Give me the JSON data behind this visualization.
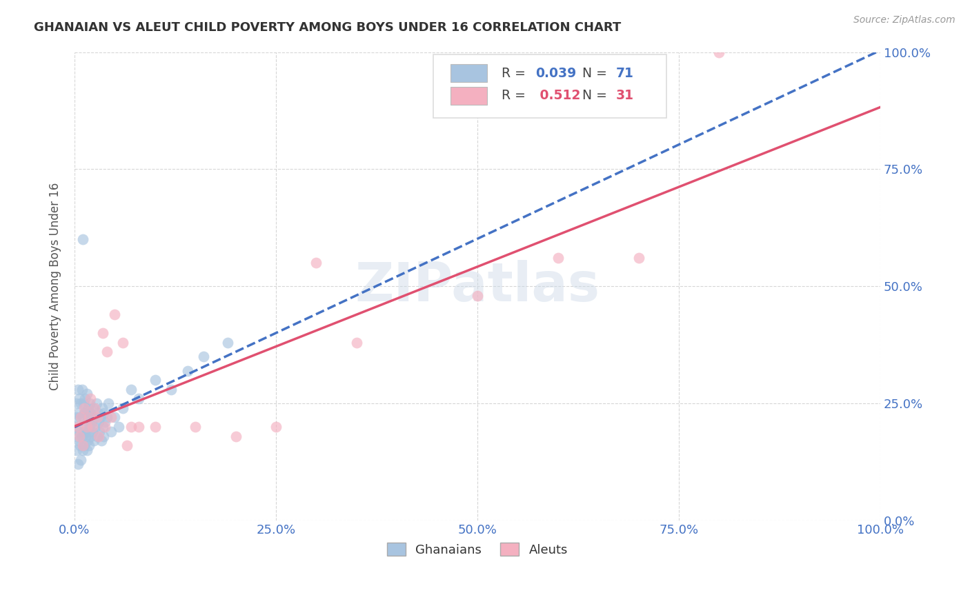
{
  "title": "GHANAIAN VS ALEUT CHILD POVERTY AMONG BOYS UNDER 16 CORRELATION CHART",
  "source": "Source: ZipAtlas.com",
  "ylabel": "Child Poverty Among Boys Under 16",
  "background_color": "#ffffff",
  "title_color": "#333333",
  "axis_label_color": "#555555",
  "tick_label_color": "#4472c4",
  "grid_color": "#cccccc",
  "ghanaian_x": [
    0.001,
    0.002,
    0.002,
    0.003,
    0.003,
    0.004,
    0.004,
    0.005,
    0.005,
    0.006,
    0.006,
    0.007,
    0.007,
    0.008,
    0.008,
    0.009,
    0.009,
    0.01,
    0.01,
    0.011,
    0.011,
    0.012,
    0.012,
    0.013,
    0.013,
    0.014,
    0.014,
    0.015,
    0.015,
    0.016,
    0.016,
    0.017,
    0.017,
    0.018,
    0.018,
    0.019,
    0.019,
    0.02,
    0.02,
    0.021,
    0.022,
    0.023,
    0.024,
    0.025,
    0.026,
    0.027,
    0.028,
    0.029,
    0.03,
    0.031,
    0.032,
    0.033,
    0.034,
    0.035,
    0.036,
    0.037,
    0.038,
    0.04,
    0.042,
    0.045,
    0.05,
    0.055,
    0.06,
    0.07,
    0.08,
    0.1,
    0.12,
    0.14,
    0.16,
    0.19,
    0.01
  ],
  "ghanaian_y": [
    0.2,
    0.22,
    0.18,
    0.25,
    0.15,
    0.28,
    0.12,
    0.23,
    0.17,
    0.26,
    0.19,
    0.22,
    0.16,
    0.25,
    0.13,
    0.28,
    0.18,
    0.22,
    0.15,
    0.25,
    0.19,
    0.23,
    0.16,
    0.26,
    0.2,
    0.18,
    0.23,
    0.15,
    0.27,
    0.21,
    0.17,
    0.24,
    0.19,
    0.22,
    0.16,
    0.25,
    0.2,
    0.18,
    0.23,
    0.21,
    0.19,
    0.24,
    0.17,
    0.22,
    0.2,
    0.25,
    0.18,
    0.23,
    0.21,
    0.19,
    0.22,
    0.17,
    0.24,
    0.2,
    0.18,
    0.23,
    0.21,
    0.22,
    0.25,
    0.19,
    0.22,
    0.2,
    0.24,
    0.28,
    0.26,
    0.3,
    0.28,
    0.32,
    0.35,
    0.38,
    0.6
  ],
  "aleut_x": [
    0.004,
    0.006,
    0.008,
    0.01,
    0.012,
    0.015,
    0.018,
    0.02,
    0.022,
    0.025,
    0.028,
    0.03,
    0.035,
    0.038,
    0.04,
    0.045,
    0.05,
    0.06,
    0.065,
    0.07,
    0.08,
    0.1,
    0.15,
    0.2,
    0.25,
    0.3,
    0.35,
    0.5,
    0.6,
    0.7,
    0.8
  ],
  "aleut_y": [
    0.2,
    0.18,
    0.22,
    0.16,
    0.24,
    0.2,
    0.22,
    0.26,
    0.2,
    0.24,
    0.22,
    0.18,
    0.4,
    0.2,
    0.36,
    0.22,
    0.44,
    0.38,
    0.16,
    0.2,
    0.2,
    0.2,
    0.2,
    0.18,
    0.2,
    0.55,
    0.38,
    0.48,
    0.56,
    0.56,
    1.0
  ],
  "ghanaian_color": "#a8c4e0",
  "aleut_color": "#f4b0c0",
  "ghanaian_line_color": "#4472c4",
  "aleut_line_color": "#e05070",
  "R_ghanaian": "0.039",
  "N_ghanaian": "71",
  "R_aleut": "0.512",
  "N_aleut": "31",
  "xlim": [
    0.0,
    1.0
  ],
  "ylim": [
    0.0,
    1.0
  ],
  "xticks": [
    0.0,
    0.25,
    0.5,
    0.75,
    1.0
  ],
  "xtick_labels": [
    "0.0%",
    "25.0%",
    "50.0%",
    "75.0%",
    "100.0%"
  ],
  "yticks": [
    0.0,
    0.25,
    0.5,
    0.75,
    1.0
  ],
  "ytick_labels_right": [
    "0.0%",
    "25.0%",
    "50.0%",
    "75.0%",
    "100.0%"
  ]
}
